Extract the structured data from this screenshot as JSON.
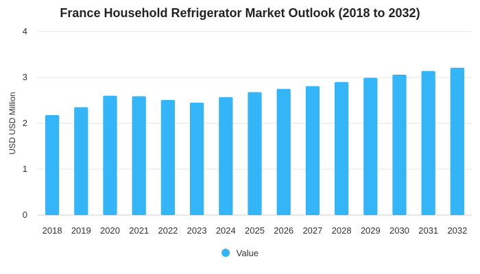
{
  "chart_data": {
    "type": "bar",
    "title": "France Household Refrigerator Market Outlook (2018 to 2032)",
    "xlabel": "",
    "ylabel": "USD USD Million",
    "ylim": [
      0,
      4
    ],
    "yticks": [
      0,
      1,
      2,
      3,
      4
    ],
    "categories": [
      "2018",
      "2019",
      "2020",
      "2021",
      "2022",
      "2023",
      "2024",
      "2025",
      "2026",
      "2027",
      "2028",
      "2029",
      "2030",
      "2031",
      "2032"
    ],
    "series": [
      {
        "name": "Value",
        "values": [
          2.18,
          2.35,
          2.6,
          2.59,
          2.51,
          2.45,
          2.57,
          2.68,
          2.75,
          2.81,
          2.9,
          2.99,
          3.06,
          3.14,
          3.21
        ]
      }
    ],
    "grid": true,
    "legend": "bottom-center",
    "colors": {
      "bar": "#33b5f7",
      "grid": "#e6e6e6",
      "axis": "#cccccc",
      "text": "#333333"
    }
  }
}
